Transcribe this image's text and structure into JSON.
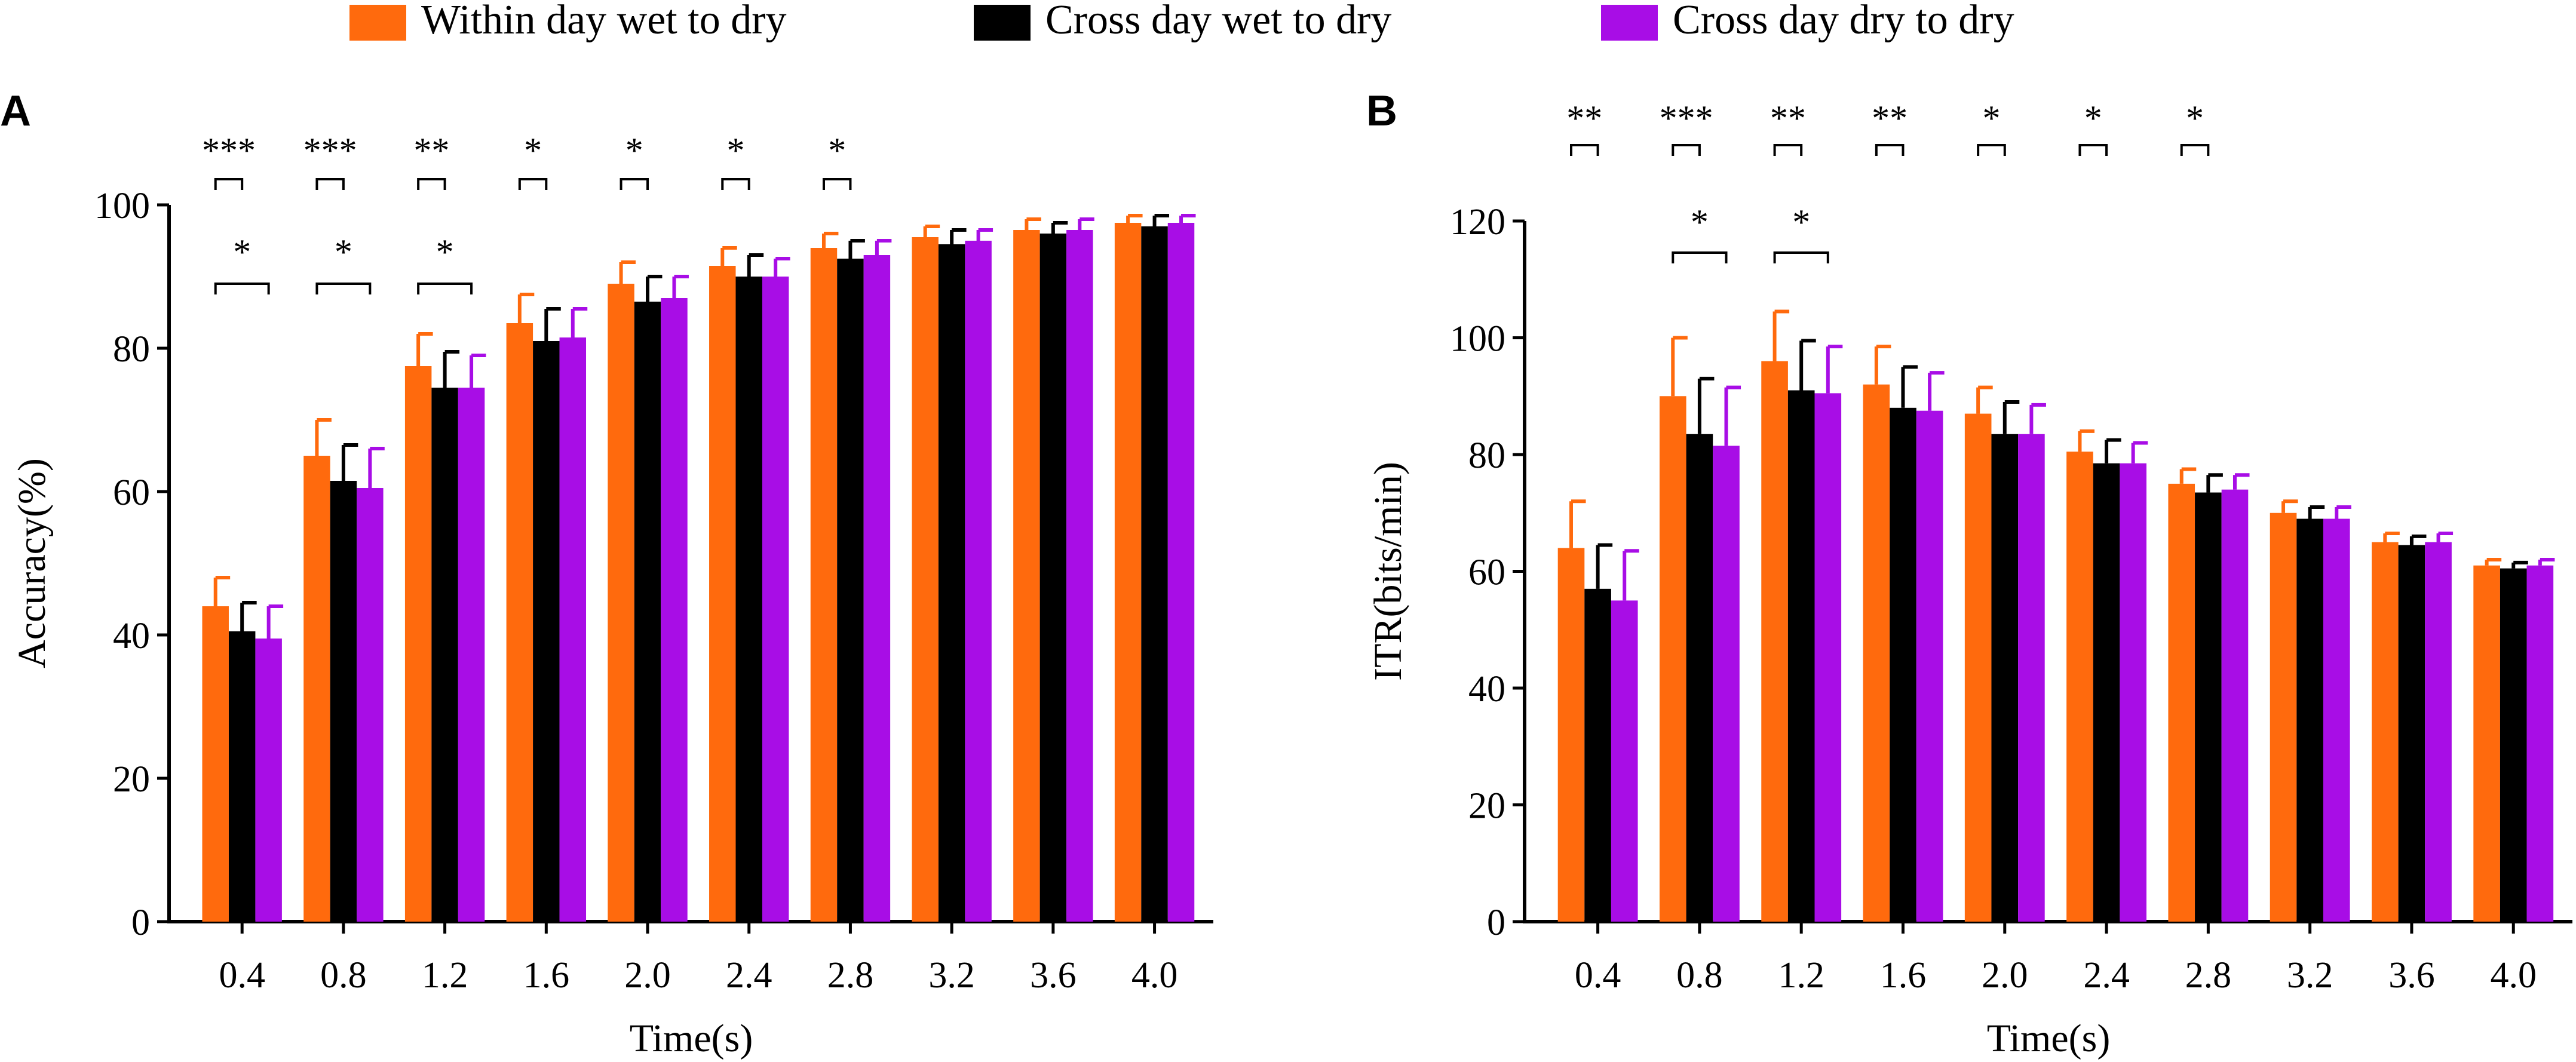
{
  "legend": [
    {
      "label": "Within day wet to dry",
      "color": "#ff6a0d"
    },
    {
      "label": "Cross day wet to dry",
      "color": "#000000"
    },
    {
      "label": "Cross day dry to dry",
      "color": "#a80de6"
    }
  ],
  "chart_data": [
    {
      "type": "bar",
      "panel": "A",
      "xlabel": "Time(s)",
      "ylabel": "Accuracy(%)",
      "ylim": [
        0,
        100
      ],
      "yticks": [
        0,
        20,
        40,
        60,
        80,
        100
      ],
      "categories": [
        "0.4",
        "0.8",
        "1.2",
        "1.6",
        "2.0",
        "2.4",
        "2.8",
        "3.2",
        "3.6",
        "4.0"
      ],
      "series": [
        {
          "name": "Within day wet to dry",
          "values": [
            44,
            65,
            77.5,
            83.5,
            89,
            91.5,
            94,
            95.5,
            96.5,
            97.5
          ],
          "errors": [
            4,
            5,
            4.5,
            4,
            3,
            2.5,
            2,
            1.5,
            1.5,
            1
          ]
        },
        {
          "name": "Cross day wet to dry",
          "values": [
            40.5,
            61.5,
            74.5,
            81,
            86.5,
            90,
            92.5,
            94.5,
            96,
            97
          ],
          "errors": [
            4,
            5,
            5,
            4.5,
            3.5,
            3,
            2.5,
            2,
            1.5,
            1.5
          ]
        },
        {
          "name": "Cross day dry to dry",
          "values": [
            39.5,
            60.5,
            74.5,
            81.5,
            87,
            90,
            93,
            95,
            96.5,
            97.5
          ],
          "errors": [
            4.5,
            5.5,
            4.5,
            4,
            3,
            2.5,
            2,
            1.5,
            1.5,
            1
          ]
        }
      ],
      "significance": [
        {
          "category": "0.4",
          "label": "***",
          "pair": [
            0,
            1
          ]
        },
        {
          "category": "0.8",
          "label": "***",
          "pair": [
            0,
            1
          ]
        },
        {
          "category": "1.2",
          "label": "**",
          "pair": [
            0,
            1
          ]
        },
        {
          "category": "1.6",
          "label": "*",
          "pair": [
            0,
            1
          ]
        },
        {
          "category": "2.0",
          "label": "*",
          "pair": [
            0,
            1
          ]
        },
        {
          "category": "2.4",
          "label": "*",
          "pair": [
            0,
            1
          ]
        },
        {
          "category": "2.8",
          "label": "*",
          "pair": [
            0,
            1
          ]
        },
        {
          "category": "0.4",
          "label": "*",
          "pair": [
            0,
            2
          ]
        },
        {
          "category": "0.8",
          "label": "*",
          "pair": [
            0,
            2
          ]
        },
        {
          "category": "1.2",
          "label": "*",
          "pair": [
            0,
            2
          ]
        }
      ]
    },
    {
      "type": "bar",
      "panel": "B",
      "xlabel": "Time(s)",
      "ylabel": "ITR(bits/min)",
      "ylim": [
        0,
        120
      ],
      "yticks": [
        0,
        20,
        40,
        60,
        80,
        100,
        120
      ],
      "categories": [
        "0.4",
        "0.8",
        "1.2",
        "1.6",
        "2.0",
        "2.4",
        "2.8",
        "3.2",
        "3.6",
        "4.0"
      ],
      "series": [
        {
          "name": "Within day wet to dry",
          "values": [
            64,
            90,
            96,
            92,
            87,
            80.5,
            75,
            70,
            65,
            61
          ],
          "errors": [
            8,
            10,
            8.5,
            6.5,
            4.5,
            3.5,
            2.5,
            2,
            1.5,
            1
          ]
        },
        {
          "name": "Cross day wet to dry",
          "values": [
            57,
            83.5,
            91,
            88,
            83.5,
            78.5,
            73.5,
            69,
            64.5,
            60.5
          ],
          "errors": [
            7.5,
            9.5,
            8.5,
            7,
            5.5,
            4,
            3,
            2,
            1.5,
            1
          ]
        },
        {
          "name": "Cross day dry to dry",
          "values": [
            55,
            81.5,
            90.5,
            87.5,
            83.5,
            78.5,
            74,
            69,
            65,
            61
          ],
          "errors": [
            8.5,
            10,
            8,
            6.5,
            5,
            3.5,
            2.5,
            2,
            1.5,
            1
          ]
        }
      ],
      "significance": [
        {
          "category": "0.4",
          "label": "**",
          "pair": [
            0,
            1
          ]
        },
        {
          "category": "0.8",
          "label": "***",
          "pair": [
            0,
            1
          ]
        },
        {
          "category": "1.2",
          "label": "**",
          "pair": [
            0,
            1
          ]
        },
        {
          "category": "1.6",
          "label": "**",
          "pair": [
            0,
            1
          ]
        },
        {
          "category": "2.0",
          "label": "*",
          "pair": [
            0,
            1
          ]
        },
        {
          "category": "2.4",
          "label": "*",
          "pair": [
            0,
            1
          ]
        },
        {
          "category": "2.8",
          "label": "*",
          "pair": [
            0,
            1
          ]
        },
        {
          "category": "0.8",
          "label": "*",
          "pair": [
            0,
            2
          ]
        },
        {
          "category": "1.2",
          "label": "*",
          "pair": [
            0,
            2
          ]
        }
      ]
    }
  ]
}
